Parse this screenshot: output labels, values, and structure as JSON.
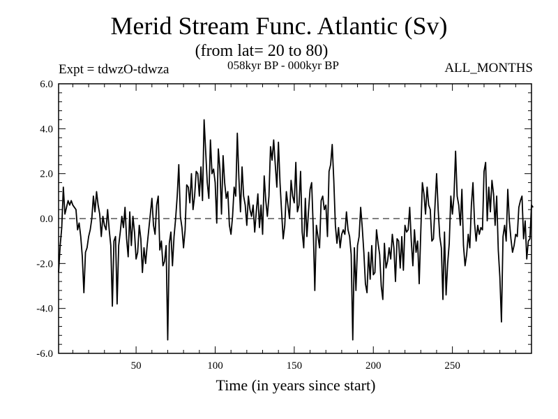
{
  "chart_data": {
    "type": "line",
    "title": "Merid Stream Func. Atlantic (Sv)",
    "subtitle": "(from lat= 20 to 80)",
    "experiment": "Expt = tdwzO-tdwza",
    "period": "058kyr BP - 000kyr BP",
    "months": "ALL_MONTHS",
    "xlabel": "Time (in years since start)",
    "ylabel": "",
    "xlim": [
      1,
      300
    ],
    "ylim": [
      -6.0,
      6.0
    ],
    "x_ticks": [
      50,
      100,
      150,
      200,
      250
    ],
    "x_tick_labels": [
      "50",
      "100",
      "150",
      "200",
      "250"
    ],
    "y_ticks": [
      -6,
      -4,
      -2,
      0,
      2,
      4,
      6
    ],
    "y_tick_labels": [
      "-6.0",
      "-4.0",
      "-2.0",
      "0.0",
      "2.0",
      "4.0",
      "6.0"
    ],
    "zero_line": "dashed",
    "grid": false,
    "series": [
      {
        "x_start": 1,
        "x_step": 1,
        "values": [
          -2.4,
          -1.2,
          -0.4,
          1.4,
          0.2,
          0.5,
          0.8,
          0.6,
          0.8,
          0.6,
          0.5,
          0.4,
          -0.5,
          -0.2,
          -0.8,
          -1.7,
          -3.3,
          -1.5,
          -1.3,
          -0.8,
          -0.5,
          0.0,
          1.0,
          0.3,
          1.2,
          0.6,
          0.2,
          -0.8,
          0.1,
          -0.3,
          -0.5,
          0.4,
          -0.5,
          -1.2,
          -3.9,
          -1.0,
          -0.8,
          -3.8,
          -1.2,
          -0.6,
          0.1,
          -0.4,
          0.5,
          -0.9,
          -1.7,
          0.3,
          -1.2,
          0.1,
          -0.6,
          -1.8,
          -1.5,
          -0.3,
          -0.9,
          -2.4,
          -1.3,
          -2.0,
          -1.2,
          -0.5,
          0.2,
          0.9,
          -0.3,
          -0.7,
          0.6,
          1.0,
          -1.4,
          -1.0,
          -2.1,
          -1.9,
          -1.2,
          -5.4,
          -1.1,
          -0.6,
          -2.1,
          -0.8,
          0.0,
          1.0,
          2.4,
          0.1,
          -0.4,
          -1.3,
          -0.5,
          1.5,
          1.4,
          0.7,
          2.0,
          0.4,
          1.0,
          2.1,
          2.0,
          1.0,
          2.3,
          0.8,
          4.4,
          3.0,
          1.6,
          0.9,
          3.5,
          2.0,
          2.2,
          1.6,
          -0.2,
          3.1,
          2.2,
          0.2,
          2.8,
          1.6,
          0.9,
          1.2,
          -0.3,
          -0.7,
          0.1,
          1.4,
          1.0,
          3.8,
          1.8,
          0.3,
          2.3,
          1.0,
          0.6,
          -0.3,
          1.0,
          0.4,
          0.1,
          0.6,
          -0.6,
          0.3,
          1.1,
          -0.4,
          0.6,
          -0.7,
          1.9,
          0.8,
          0.1,
          1.0,
          3.2,
          2.6,
          3.5,
          2.4,
          1.4,
          3.4,
          1.6,
          0.3,
          -0.9,
          -0.3,
          1.2,
          0.6,
          0.0,
          1.7,
          1.0,
          0.7,
          2.5,
          0.3,
          0.6,
          2.1,
          -0.6,
          -1.3,
          0.9,
          -0.8,
          0.3,
          1.3,
          1.6,
          -0.4,
          -3.2,
          -0.3,
          -0.8,
          -1.3,
          0.8,
          1.0,
          0.4,
          0.6,
          -0.8,
          2.1,
          2.4,
          3.3,
          1.7,
          -0.3,
          -1.1,
          -0.4,
          -1.3,
          -0.7,
          -0.5,
          -0.7,
          0.3,
          -0.5,
          -0.8,
          -1.6,
          -5.4,
          -1.3,
          -3.2,
          -1.2,
          -0.8,
          0.5,
          -0.4,
          -1.5,
          -2.9,
          -3.3,
          -1.5,
          -2.7,
          -1.2,
          -2.5,
          -2.4,
          -0.5,
          -1.1,
          -1.6,
          -3.0,
          -3.6,
          -1.1,
          -2.2,
          -1.9,
          -1.3,
          -1.8,
          -0.7,
          -1.3,
          -2.8,
          -0.9,
          -1.0,
          -2.2,
          -0.8,
          -2.3,
          -0.3,
          -0.6,
          -0.5,
          0.5,
          -1.0,
          -2.1,
          -0.5,
          -1.5,
          -1.0,
          -2.9,
          -0.6,
          1.6,
          1.1,
          0.2,
          1.4,
          0.6,
          0.4,
          -1.0,
          -0.9,
          0.6,
          2.0,
          0.4,
          -0.8,
          -1.3,
          -3.6,
          -0.6,
          -3.4,
          -2.0,
          -1.1,
          1.0,
          0.2,
          1.0,
          3.0,
          1.0,
          0.6,
          -0.3,
          1.3,
          -1.2,
          -2.1,
          -1.6,
          -0.7,
          -1.3,
          0.6,
          1.6,
          -0.2,
          -1.0,
          -0.3,
          -0.7,
          -0.4,
          -0.5,
          2.1,
          2.5,
          -0.1,
          1.4,
          0.3,
          1.7,
          1.1,
          -0.3,
          1.0,
          -1.4,
          -2.6,
          -4.6,
          -0.8,
          -0.3,
          -1.0,
          1.3,
          -0.1,
          -0.9,
          -1.5,
          -1.2,
          -0.7,
          -0.8,
          0.5,
          0.8,
          1.0,
          -0.9,
          -0.1,
          -1.8,
          -1.0,
          -0.9,
          0.6,
          0.5
        ]
      }
    ]
  }
}
